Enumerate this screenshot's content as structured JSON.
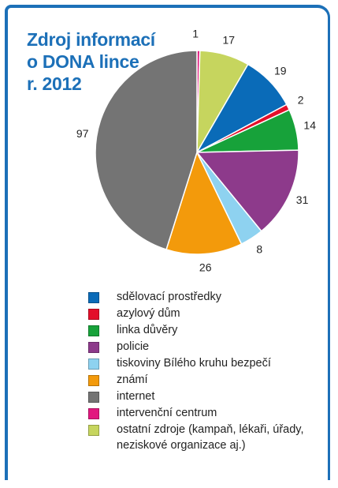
{
  "title": "Zdroj informací\no DONA lince\nr. 2012",
  "colors": {
    "frame": "#1c70b8",
    "title": "#1c70b8"
  },
  "chart_data": {
    "type": "pie",
    "title": "Zdroj informací o DONA lince r. 2012",
    "slices": [
      {
        "label": "intervenční centrum",
        "value": 1,
        "color": "#e2187f"
      },
      {
        "label": "ostatní zdroje (kampaň, lékaři, úřady, neziskové organizace aj.)",
        "value": 17,
        "color": "#c6d55e"
      },
      {
        "label": "sdělovací prostředky",
        "value": 19,
        "color": "#0a6bb8"
      },
      {
        "label": "azylový dům",
        "value": 2,
        "color": "#e30f2a"
      },
      {
        "label": "linka důvěry",
        "value": 14,
        "color": "#17a23a"
      },
      {
        "label": "policie",
        "value": 31,
        "color": "#8d3a8b"
      },
      {
        "label": "tiskoviny Bílého kruhu bezpečí",
        "value": 8,
        "color": "#8ed2f0"
      },
      {
        "label": "známí",
        "value": 26,
        "color": "#f39a0b"
      },
      {
        "label": "internet",
        "value": 97,
        "color": "#747474"
      }
    ],
    "start": "12 o'clock",
    "direction": "clockwise"
  },
  "legend": [
    {
      "label": "sdělovací prostředky",
      "color": "#0a6bb8"
    },
    {
      "label": "azylový dům",
      "color": "#e30f2a"
    },
    {
      "label": "linka důvěry",
      "color": "#17a23a"
    },
    {
      "label": "policie",
      "color": "#8d3a8b"
    },
    {
      "label": "tiskoviny Bílého kruhu bezpečí",
      "color": "#8ed2f0"
    },
    {
      "label": "známí",
      "color": "#f39a0b"
    },
    {
      "label": "internet",
      "color": "#747474"
    },
    {
      "label": "intervenční centrum",
      "color": "#e2187f"
    },
    {
      "label": "ostatní zdroje (kampaň, lékaři, úřady,\nneziskové organizace aj.)",
      "color": "#c6d55e"
    }
  ]
}
